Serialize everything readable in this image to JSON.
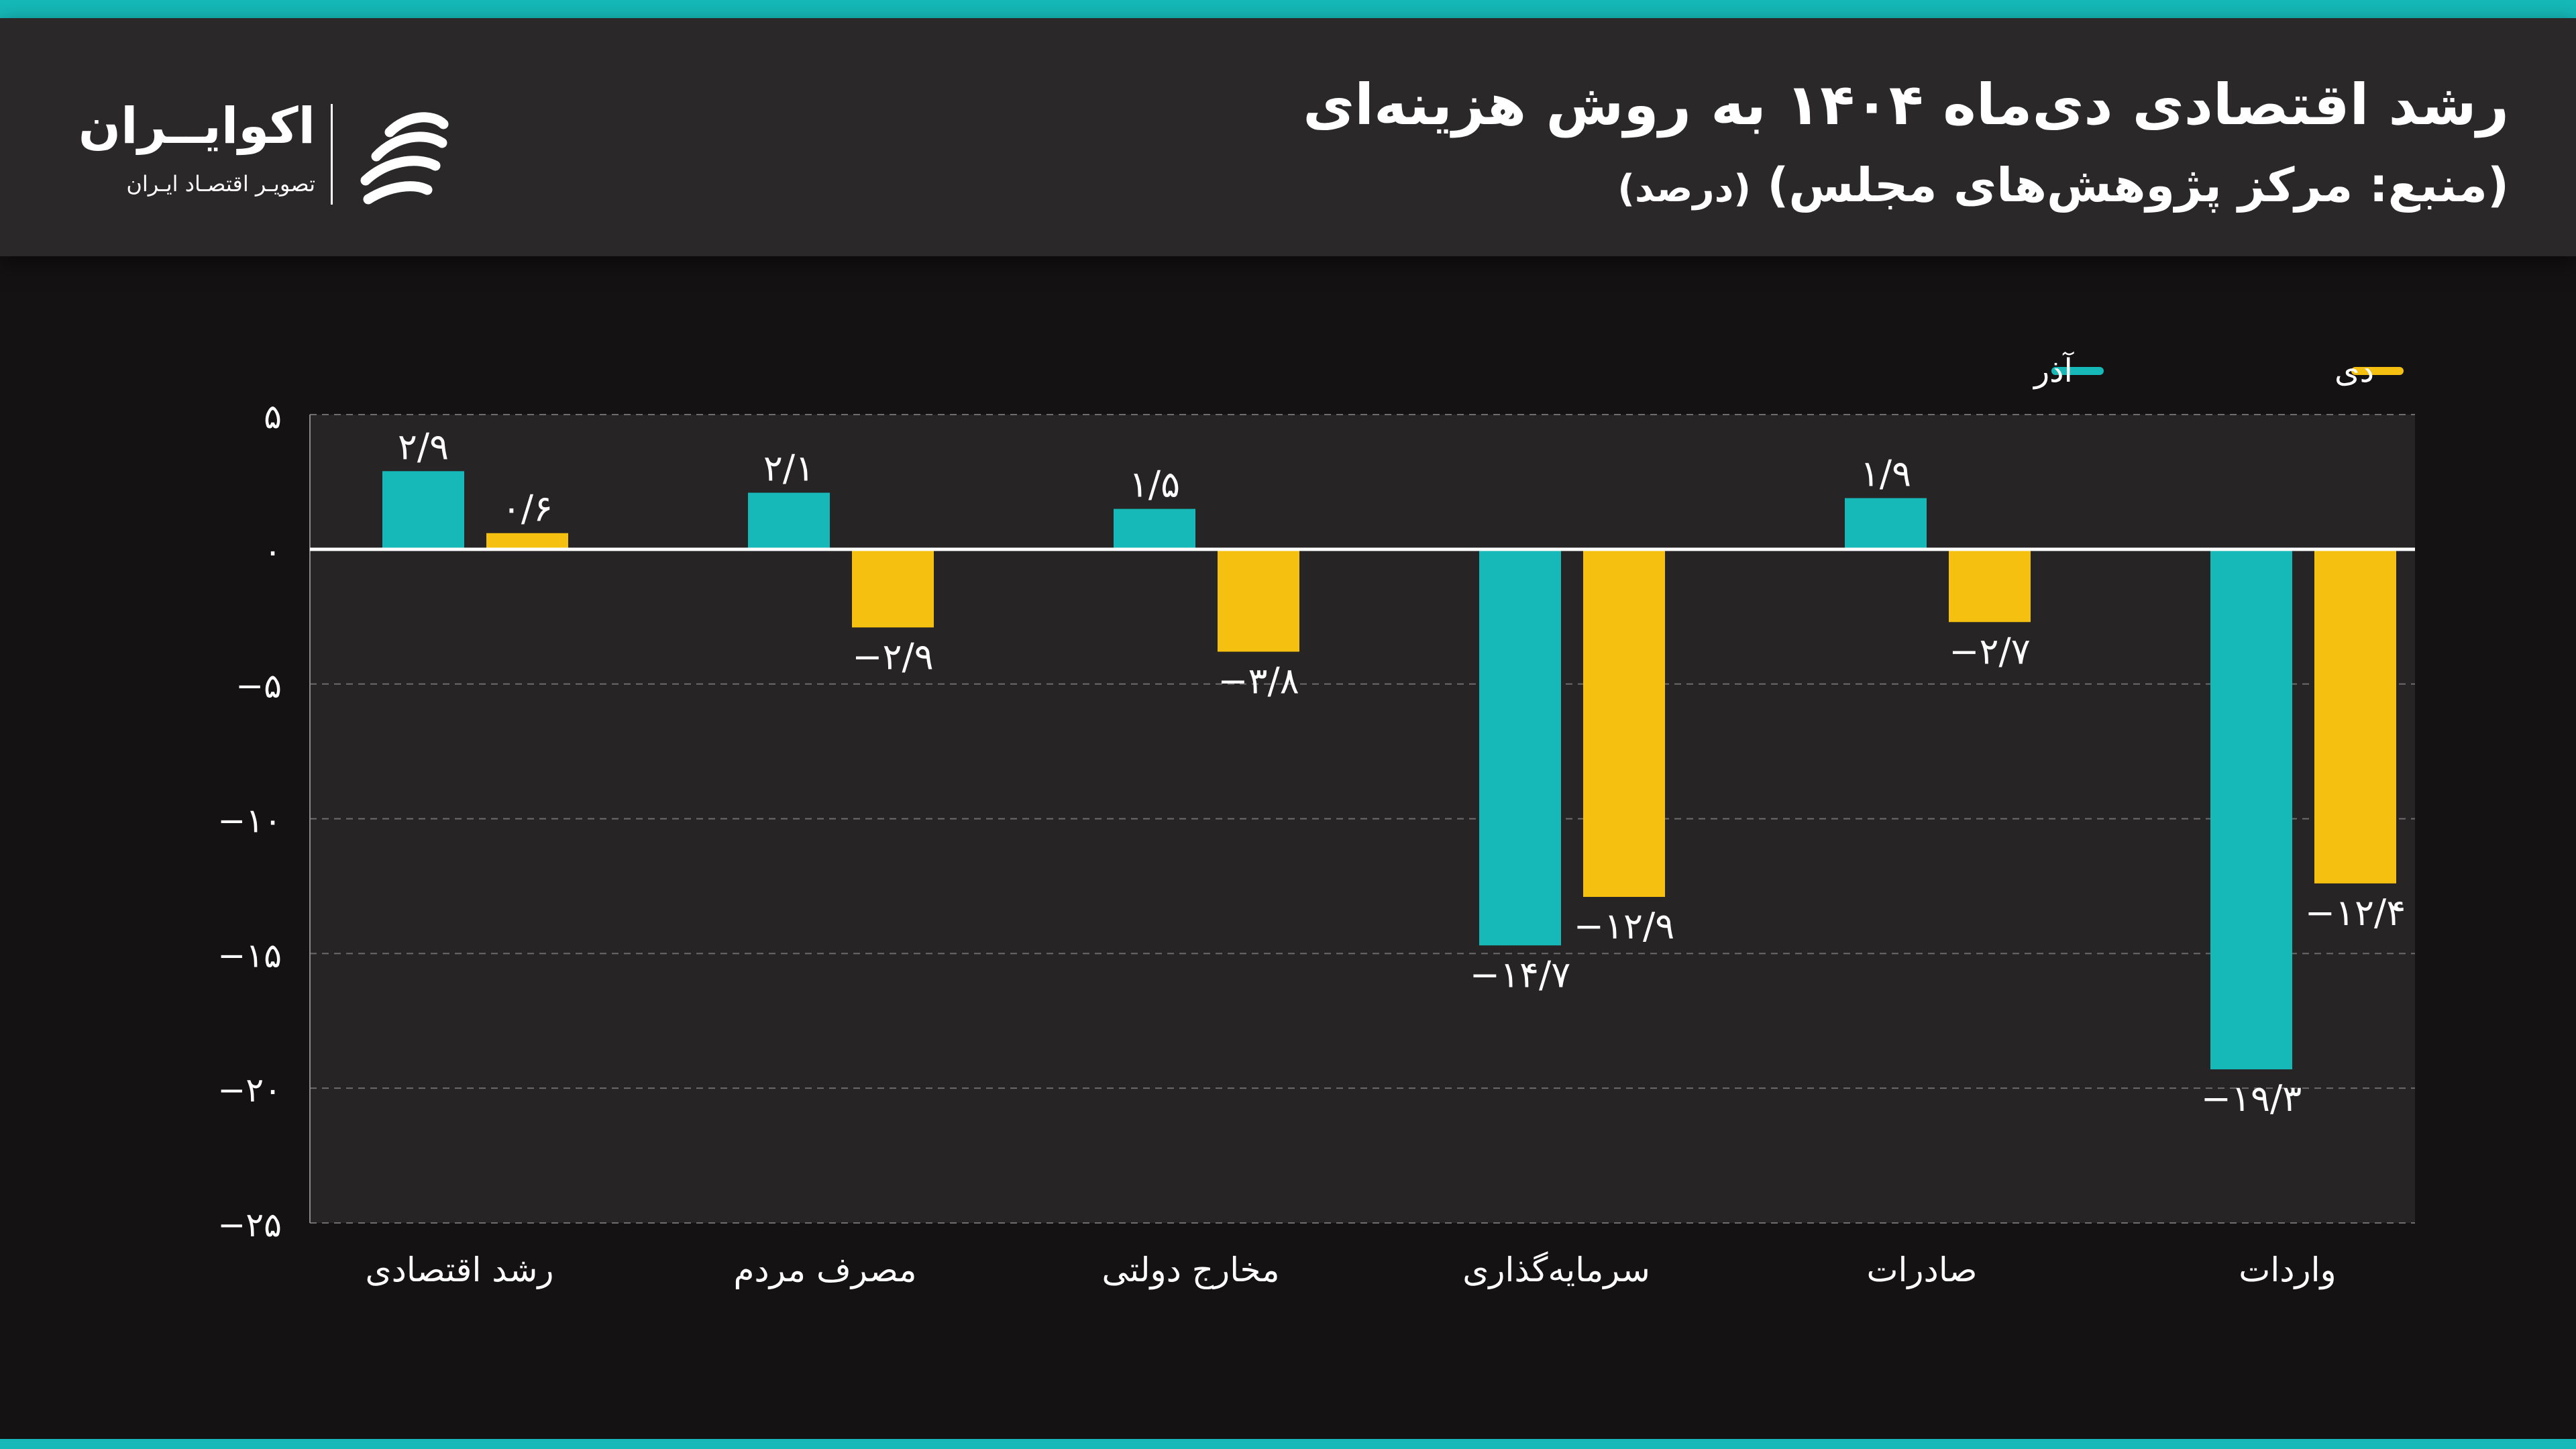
{
  "header": {
    "title": "رشد اقتصادی دی‌ماه ۱۴۰۴ به روش هزینه‌ای",
    "subtitle": "(منبع: مرکز پژوهش‌های مجلس)",
    "unit": "(درصد)"
  },
  "logo": {
    "name": "اکوایــران",
    "tagline": "تصویـر اقتصـاد ایـران",
    "icon": "ecoiran-logo-icon"
  },
  "colors": {
    "accent": "#16b8b8",
    "azar": "#16b8b8",
    "dey": "#f5c00f",
    "background": "#141213",
    "plot_background": "#262425",
    "header_background": "#2a2829"
  },
  "chart_data": {
    "type": "bar",
    "categories": [
      "رشد اقتصادی",
      "مصرف مردم",
      "مخارج دولتی",
      "سرمایه‌گذاری",
      "صادرات",
      "واردات"
    ],
    "series": [
      {
        "name": "آذر",
        "values": [
          2.9,
          2.1,
          1.5,
          -14.7,
          1.9,
          -19.3
        ],
        "labels": [
          "۲/۹",
          "۲/۱",
          "۱/۵",
          "−۱۴/۷",
          "۱/۹",
          "−۱۹/۳"
        ]
      },
      {
        "name": "دی",
        "values": [
          0.6,
          -2.9,
          -3.8,
          -12.9,
          -2.7,
          -12.4
        ],
        "labels": [
          "۰/۶",
          "−۲/۹",
          "−۳/۸",
          "−۱۲/۹",
          "−۲/۷",
          "−۱۲/۴"
        ]
      }
    ],
    "yticks": [
      5,
      0,
      -5,
      -10,
      -15,
      -20,
      -25
    ],
    "ytick_labels": [
      "۵",
      "۰",
      "−۵",
      "−۱۰",
      "−۱۵",
      "−۲۰",
      "−۲۵"
    ],
    "ylim": [
      -25,
      5
    ],
    "grid": true,
    "legend_position": "top-right",
    "title": "",
    "xlabel": "",
    "ylabel": ""
  }
}
